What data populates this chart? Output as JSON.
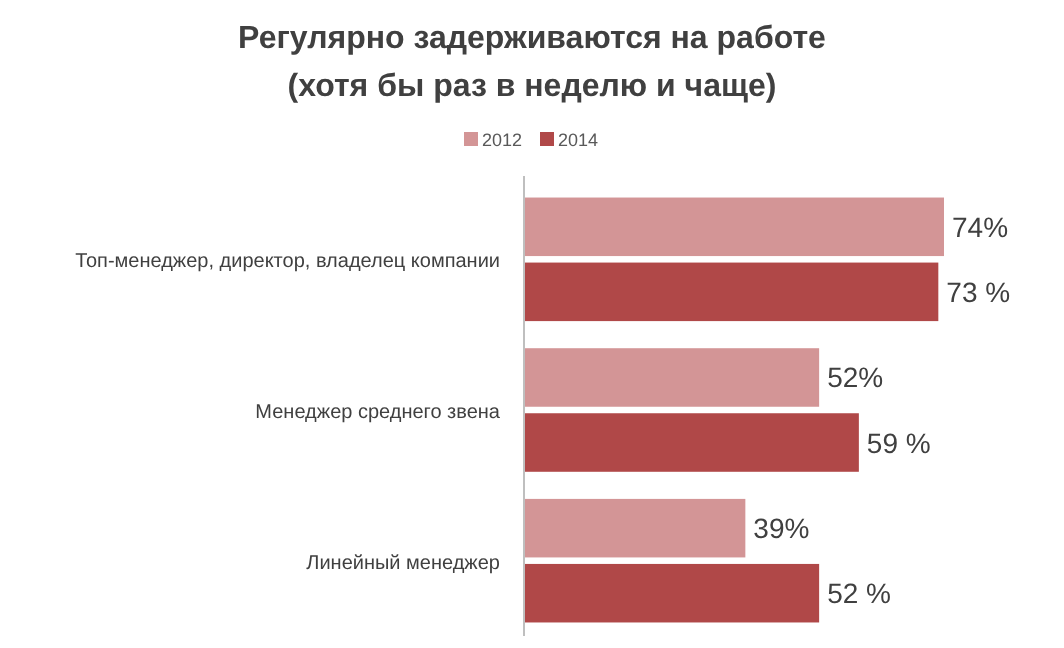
{
  "chart_data": {
    "type": "bar",
    "orientation": "horizontal",
    "title": "Регулярно задерживаются на работе\n(хотя бы раз в неделю и чаще)",
    "categories": [
      "Топ-менеджер, директор, владелец компании",
      "Менеджер среднего звена",
      "Линейный менеджер"
    ],
    "legend": "top",
    "series": [
      {
        "name": "2012",
        "color": "#d39596",
        "values": [
          74,
          52,
          39
        ],
        "value_labels": [
          "74%",
          "52%",
          "39%"
        ]
      },
      {
        "name": "2014",
        "color": "#b04848",
        "values": [
          73,
          59,
          52
        ],
        "value_labels": [
          "73 %",
          "59 %",
          "52 %"
        ]
      }
    ]
  }
}
